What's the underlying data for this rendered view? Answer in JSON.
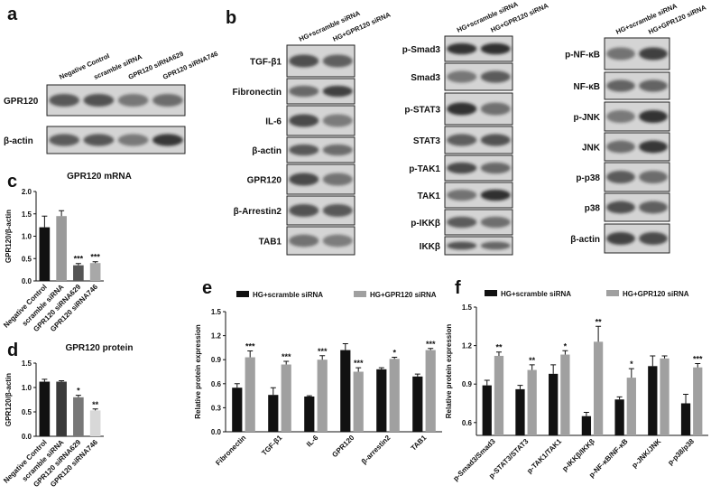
{
  "panel_labels": [
    "a",
    "b",
    "c",
    "d",
    "e",
    "f"
  ],
  "panel_a": {
    "lanes": [
      "Negative Control",
      "scramble siRNA",
      "GPR120 siRNA629",
      "GPR120 siRNA746"
    ],
    "rows": [
      "GPR120",
      "β-actin"
    ]
  },
  "panel_b": {
    "lanes": [
      "HG+scramble siRNA",
      "HG+GPR120 siRNA"
    ],
    "columns": [
      [
        "TGF-β1",
        "Fibronectin",
        "IL-6",
        "β-actin",
        "GPR120",
        "β-Arrestin2",
        "TAB1"
      ],
      [
        "p-Smad3",
        "Smad3",
        "p-STAT3",
        "STAT3",
        "p-TAK1",
        "TAK1",
        "p-IKKβ",
        "IKKβ"
      ],
      [
        "p-NF-κB",
        "NF-κB",
        "p-JNK",
        "JNK",
        "p-p38",
        "p38",
        "β-actin"
      ]
    ]
  },
  "chart_data": [
    {
      "type": "bar",
      "title": "GPR120 mRNA",
      "y_label": "GPR120/β-actin",
      "categories": [
        "Negative Control",
        "scramble siRNA",
        "GPR120 siRNA629",
        "GPR120 siRNA746"
      ],
      "values": [
        1.2,
        1.45,
        0.35,
        0.4
      ],
      "errors": [
        0.25,
        0.12,
        0.04,
        0.03
      ],
      "annotations": [
        null,
        null,
        "***",
        "***"
      ],
      "colors": [
        "#111111",
        "#9a9a9a",
        "#555555",
        "#a8a8a8"
      ],
      "ylim": [
        0,
        2
      ],
      "yticks": [
        {
          "value": 0,
          "label": "0.0"
        },
        0.5,
        {
          "value": 1,
          "label": "1.0"
        },
        1.5,
        {
          "value": 2,
          "label": "2.0"
        }
      ]
    },
    {
      "type": "bar",
      "title": "GPR120 protein",
      "y_label": "GPR120/β-actin",
      "categories": [
        "Negative Control",
        "scramble siRNA",
        "GPR120 siRNA629",
        "GPR120 siRNA746"
      ],
      "values": [
        1.12,
        1.12,
        0.8,
        0.53
      ],
      "errors": [
        0.05,
        0.02,
        0.04,
        0.03
      ],
      "annotations": [
        null,
        null,
        "*",
        "**"
      ],
      "colors": [
        "#111111",
        "#3a3a3a",
        "#777777",
        "#d8d8d8"
      ],
      "ylim": [
        0,
        1.5
      ],
      "yticks": [
        {
          "value": 0,
          "label": "0.0"
        },
        0.5,
        {
          "value": 1,
          "label": "1.0"
        },
        1.5
      ]
    },
    {
      "type": "grouped_bar",
      "y_label": "Relative protein expression",
      "legend": "top",
      "categories": [
        "Fibronectin",
        "TGF-β1",
        "IL-6",
        "GPR120",
        "β-arrestin2",
        "TAB1"
      ],
      "series": [
        {
          "name": "HG+scramble siRNA",
          "color": "#111111",
          "values": [
            0.55,
            0.46,
            0.44,
            1.02,
            0.78,
            0.69
          ],
          "errors": [
            0.05,
            0.09,
            0.01,
            0.08,
            0.02,
            0.03
          ],
          "annotations": [
            null,
            null,
            null,
            null,
            null,
            null
          ]
        },
        {
          "name": "HG+GPR120 siRNA",
          "color": "#a0a0a0",
          "values": [
            0.93,
            0.84,
            0.9,
            0.75,
            0.91,
            1.02
          ],
          "errors": [
            0.08,
            0.04,
            0.05,
            0.05,
            0.02,
            0.02
          ],
          "annotations": [
            "***",
            "***",
            "***",
            "***",
            "*",
            "***"
          ]
        }
      ],
      "ylim": [
        0,
        1.5
      ],
      "yticks": [
        {
          "value": 0,
          "label": "0.0"
        },
        0.3,
        0.6,
        0.9,
        1.2,
        1.5
      ]
    },
    {
      "type": "grouped_bar",
      "y_label": "Relative protein expression",
      "legend": "top",
      "categories": [
        "p-Smad3/Smad3",
        "p-STAT3/STAT3",
        "p-TAK1/TAK1",
        "p-IKKβ/IKKβ",
        "p-NF-κB/NF-κB",
        "p-JNK/JNK",
        "p-p38/p38"
      ],
      "series": [
        {
          "name": "HG+scramble siRNA",
          "color": "#111111",
          "values": [
            0.89,
            0.86,
            0.98,
            0.65,
            0.78,
            1.04,
            0.75
          ],
          "errors": [
            0.04,
            0.03,
            0.07,
            0.03,
            0.02,
            0.08,
            0.07
          ],
          "annotations": [
            null,
            null,
            null,
            null,
            null,
            null,
            null
          ]
        },
        {
          "name": "HG+GPR120 siRNA",
          "color": "#a0a0a0",
          "values": [
            1.12,
            1.01,
            1.13,
            1.23,
            0.95,
            1.1,
            1.03
          ],
          "errors": [
            0.03,
            0.04,
            0.03,
            0.12,
            0.07,
            0.02,
            0.03
          ],
          "annotations": [
            "**",
            "**",
            "*",
            "**",
            "*",
            null,
            "***"
          ]
        }
      ],
      "ylim": [
        0.5,
        1.5
      ],
      "yticks": [
        0.6,
        0.9,
        1.2,
        1.5
      ]
    }
  ]
}
